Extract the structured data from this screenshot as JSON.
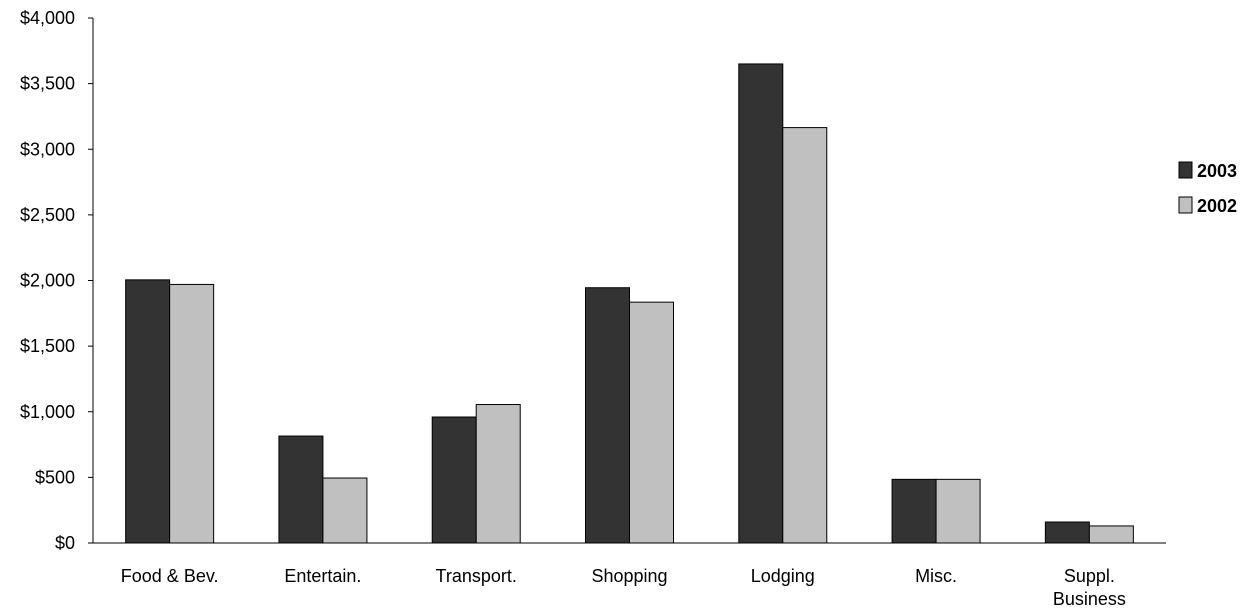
{
  "chart_data": {
    "type": "bar",
    "categories": [
      "Food & Bev.",
      "Entertain.",
      "Transport.",
      "Shopping",
      "Lodging",
      "Misc.",
      "Suppl. Business"
    ],
    "category_label_lines": [
      [
        "Food & Bev."
      ],
      [
        "Entertain."
      ],
      [
        "Transport."
      ],
      [
        "Shopping"
      ],
      [
        "Lodging"
      ],
      [
        "Misc."
      ],
      [
        "Suppl.",
        "Business"
      ]
    ],
    "series": [
      {
        "name": "2003",
        "color": "#333333",
        "values": [
          2005,
          815,
          960,
          1945,
          3650,
          485,
          160
        ]
      },
      {
        "name": "2002",
        "color": "#c0c0c0",
        "values": [
          1970,
          495,
          1055,
          1835,
          3165,
          485,
          130
        ]
      }
    ],
    "ylim": [
      0,
      4000
    ],
    "ytick_values": [
      0,
      500,
      1000,
      1500,
      2000,
      2500,
      3000,
      3500,
      4000
    ],
    "ytick_labels": [
      "$0",
      "$500",
      "$1,000",
      "$1,500",
      "$2,000",
      "$2,500",
      "$3,000",
      "$3,500",
      "$4,000"
    ],
    "title": "",
    "xlabel": "",
    "ylabel": "",
    "grid": false,
    "legend_position": "right"
  }
}
